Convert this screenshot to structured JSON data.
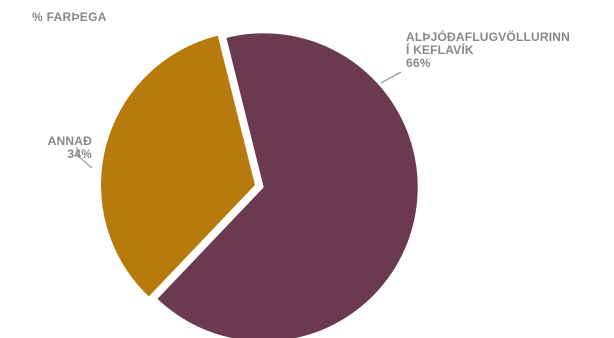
{
  "chart_data": {
    "type": "pie",
    "title": "% FARÞEGA",
    "slices": [
      {
        "label_line1": "ALÞJÓÐAFLUGVÖLLURINN",
        "label_line2": "Í KEFLAVÍK",
        "value_label": "66%",
        "value": 66,
        "color": "#6b3a51"
      },
      {
        "label_line1": "ANNAÐ",
        "label_line2": "",
        "value_label": "34%",
        "value": 34,
        "color": "#b67b0c"
      }
    ]
  }
}
